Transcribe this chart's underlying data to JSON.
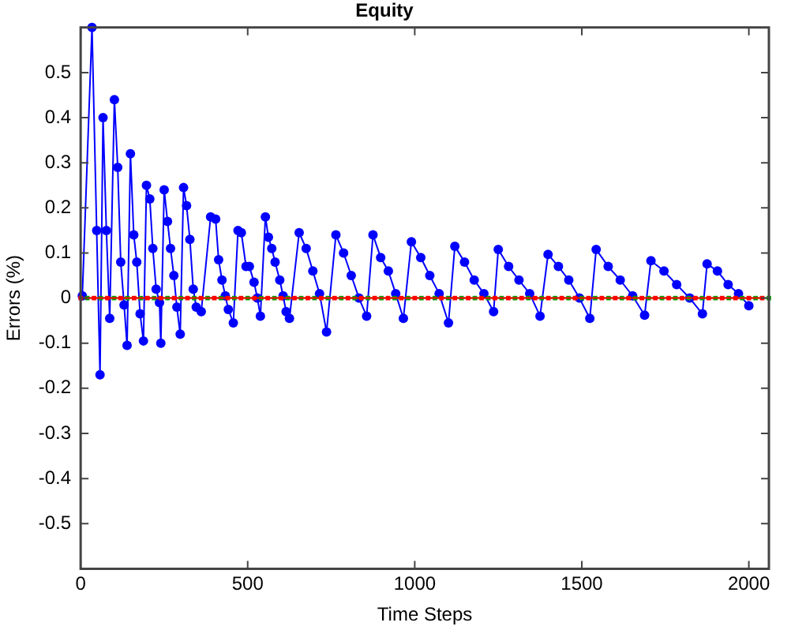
{
  "chart_data": {
    "type": "line",
    "title": "Equity",
    "xlabel": "Time Steps",
    "ylabel": "Errors (%)",
    "xlim": [
      0,
      2060
    ],
    "xticks": [
      0,
      500,
      1000,
      1500,
      2000
    ],
    "ylim": [
      -0.6,
      0.6
    ],
    "yticks": [
      -0.5,
      -0.4,
      -0.3,
      -0.2,
      -0.1,
      0,
      0.1,
      0.2,
      0.3,
      0.4,
      0.5
    ],
    "grid": false,
    "legend": false,
    "marker": "circle",
    "line_style": "solid",
    "series": [
      {
        "color": "#ff0000",
        "marker": "square",
        "x": [
          0,
          40,
          80,
          120,
          160,
          200,
          240,
          280,
          320,
          360,
          400,
          440,
          480,
          520,
          560,
          600,
          640,
          680,
          720,
          760,
          800,
          840,
          880,
          920,
          960,
          1000,
          1040,
          1080,
          1120,
          1160,
          1200,
          1240,
          1280,
          1320,
          1360,
          1400,
          1440,
          1480,
          1520,
          1560,
          1600,
          1640,
          1680,
          1720,
          1760,
          1800,
          1840,
          1880,
          1920,
          1960,
          2000,
          2040
        ],
        "values": [
          0,
          0,
          0,
          0,
          0,
          0,
          0,
          0,
          0,
          0,
          0,
          0,
          0,
          0,
          0,
          0,
          0,
          0,
          0,
          0,
          0,
          0,
          0,
          0,
          0,
          0,
          0,
          0,
          0,
          0,
          0,
          0,
          0,
          0,
          0,
          0,
          0,
          0,
          0,
          0,
          0,
          0,
          0,
          0,
          0,
          0,
          0,
          0,
          0,
          0,
          0,
          0
        ]
      },
      {
        "color": "#00a000",
        "marker": "square",
        "x": [
          20,
          60,
          100,
          140,
          180,
          220,
          260,
          300,
          340,
          380,
          420,
          460,
          500,
          540,
          580,
          620,
          660,
          700,
          740,
          780,
          820,
          860,
          900,
          940,
          980,
          1020,
          1060,
          1100,
          1140,
          1180,
          1220,
          1260,
          1300,
          1340,
          1380,
          1420,
          1460,
          1500,
          1540,
          1580,
          1620,
          1660,
          1700,
          1740,
          1780,
          1820,
          1860,
          1900,
          1940,
          1980,
          2020,
          2060
        ],
        "values": [
          0,
          0,
          0,
          0,
          0,
          0,
          0,
          0,
          0,
          0,
          0,
          0,
          0,
          0,
          0,
          0,
          0,
          0,
          0,
          0,
          0,
          0,
          0,
          0,
          0,
          0,
          0,
          0,
          0,
          0,
          0,
          0,
          0,
          0,
          0,
          0,
          0,
          0,
          0,
          0,
          0,
          0,
          0,
          0,
          0,
          0,
          0,
          0,
          0,
          0,
          0,
          0
        ]
      },
      {
        "color": "#0000ff",
        "x": [
          5,
          34,
          48,
          58,
          67,
          77,
          87,
          101,
          111,
          120,
          130,
          139,
          149,
          159,
          168,
          178,
          188,
          197,
          207,
          216,
          226,
          236,
          240,
          250,
          260,
          269,
          279,
          288,
          298,
          308,
          317,
          327,
          337,
          346,
          361,
          389,
          404,
          413,
          423,
          433,
          442,
          457,
          471,
          481,
          495,
          505,
          519,
          529,
          538,
          553,
          562,
          572,
          582,
          596,
          606,
          615,
          625,
          654,
          675,
          695,
          715,
          736,
          764,
          787,
          810,
          833,
          856,
          875,
          898,
          921,
          943,
          966,
          990,
          1018,
          1045,
          1073,
          1101,
          1120,
          1149,
          1178,
          1207,
          1236,
          1250,
          1281,
          1312,
          1344,
          1375,
          1399,
          1430,
          1461,
          1493,
          1524,
          1543,
          1579,
          1615,
          1652,
          1688,
          1707,
          1746,
          1784,
          1823,
          1861,
          1875,
          1906,
          1938,
          1969,
          2000
        ],
        "values": [
          0.005,
          0.6,
          0.15,
          -0.17,
          0.4,
          0.15,
          -0.045,
          0.44,
          0.29,
          0.08,
          -0.015,
          -0.105,
          0.32,
          0.14,
          0.08,
          -0.035,
          -0.095,
          0.25,
          0.22,
          0.11,
          0.02,
          -0.01,
          -0.1,
          0.24,
          0.17,
          0.11,
          0.05,
          -0.02,
          -0.08,
          0.245,
          0.205,
          0.13,
          0.02,
          -0.02,
          -0.03,
          0.18,
          0.175,
          0.085,
          0.04,
          0.005,
          -0.025,
          -0.055,
          0.15,
          0.145,
          0.07,
          0.07,
          0.035,
          0,
          -0.04,
          0.18,
          0.135,
          0.11,
          0.08,
          0.04,
          0.005,
          -0.03,
          -0.045,
          0.145,
          0.11,
          0.06,
          0.01,
          -0.075,
          0.14,
          0.1,
          0.05,
          0,
          -0.04,
          0.14,
          0.09,
          0.06,
          0.01,
          -0.045,
          0.125,
          0.09,
          0.05,
          0.01,
          -0.055,
          0.115,
          0.08,
          0.04,
          0.01,
          -0.03,
          0.108,
          0.07,
          0.04,
          0.01,
          -0.04,
          0.097,
          0.07,
          0.04,
          0,
          -0.045,
          0.108,
          0.07,
          0.04,
          0.005,
          -0.038,
          0.083,
          0.06,
          0.03,
          0,
          -0.035,
          0.076,
          0.06,
          0.03,
          0.01,
          -0.017
        ]
      }
    ]
  }
}
